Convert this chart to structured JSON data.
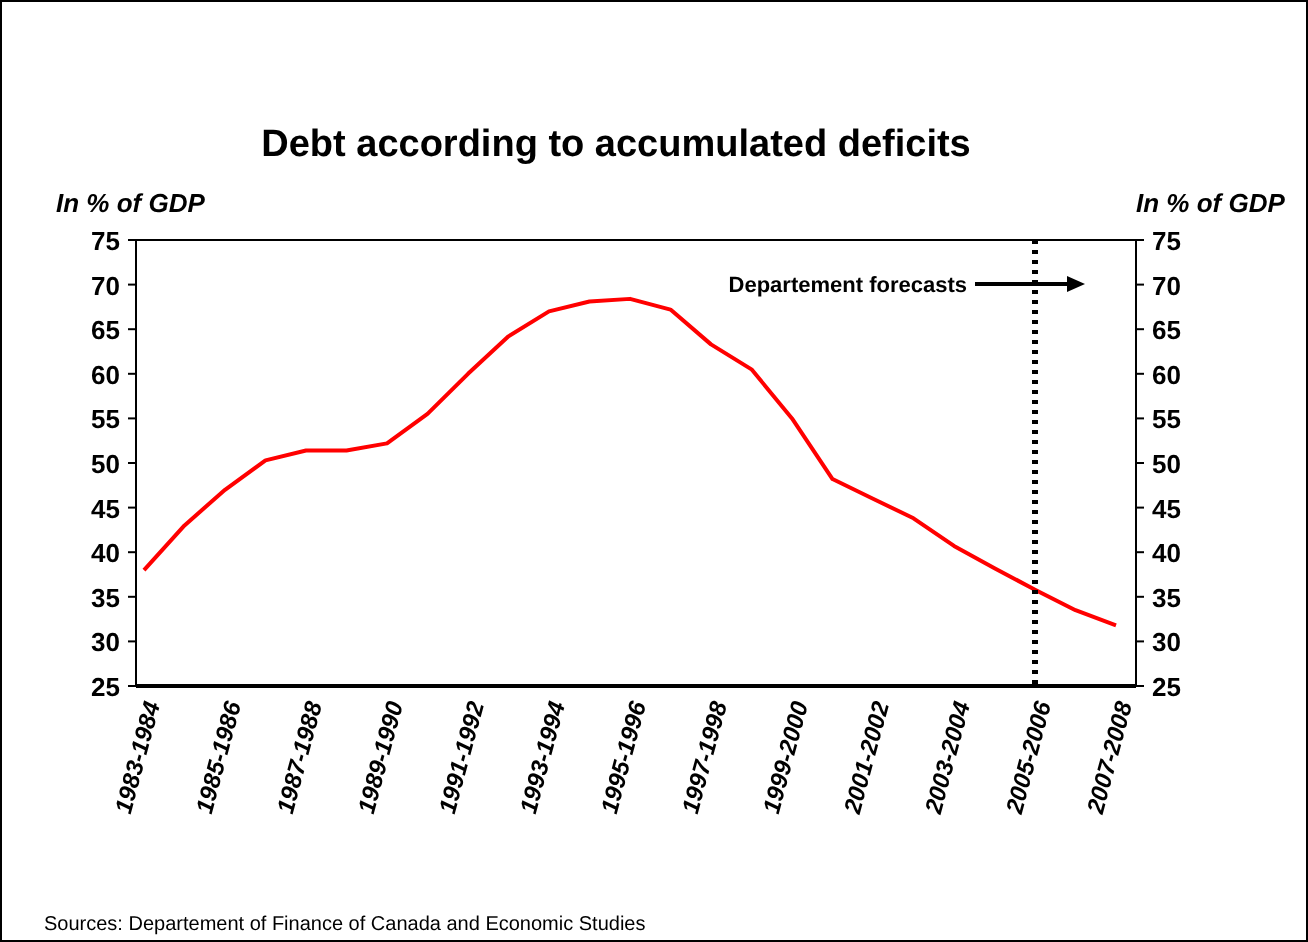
{
  "chart_data": {
    "type": "line",
    "title": "Debt according to accumulated deficits",
    "ylabel": "In % of GDP",
    "y2label": "In % of GDP",
    "categories": [
      "1983-1984",
      null,
      "1985-1986",
      null,
      "1987-1988",
      null,
      "1989-1990",
      null,
      "1991-1992",
      null,
      "1993-1994",
      null,
      "1995-1996",
      null,
      "1997-1998",
      null,
      "1999-2000",
      null,
      "2001-2002",
      null,
      "2003-2004",
      null,
      "2005-2006",
      null,
      "2007-2008"
    ],
    "series": [
      {
        "color": "#ff0000",
        "values": [
          38,
          43,
          47,
          50.3,
          51.4,
          51.4,
          52.2,
          55.5,
          60,
          64.2,
          67,
          68.1,
          68.4,
          67.2,
          63.3,
          60.5,
          55,
          48.2,
          46,
          43.8,
          40.7,
          38.2,
          35.8,
          33.5,
          31.8
        ]
      }
    ],
    "ylim": [
      25,
      75
    ],
    "yticks": [
      25,
      30,
      35,
      40,
      45,
      50,
      55,
      60,
      65,
      70,
      75
    ],
    "y2lim": [
      25,
      75
    ],
    "y2ticks": [
      25,
      30,
      35,
      40,
      45,
      50,
      55,
      60,
      65,
      70,
      75
    ],
    "ref_lines": [
      {
        "axis": "x",
        "value": "2005-2006",
        "label": "Departement forecasts",
        "color": "#000000",
        "line_style": "dotted"
      }
    ],
    "grid": false,
    "line_style": "solid",
    "annotations": [
      "Sources: Departement of Finance of Canada and Economic Studies"
    ]
  }
}
